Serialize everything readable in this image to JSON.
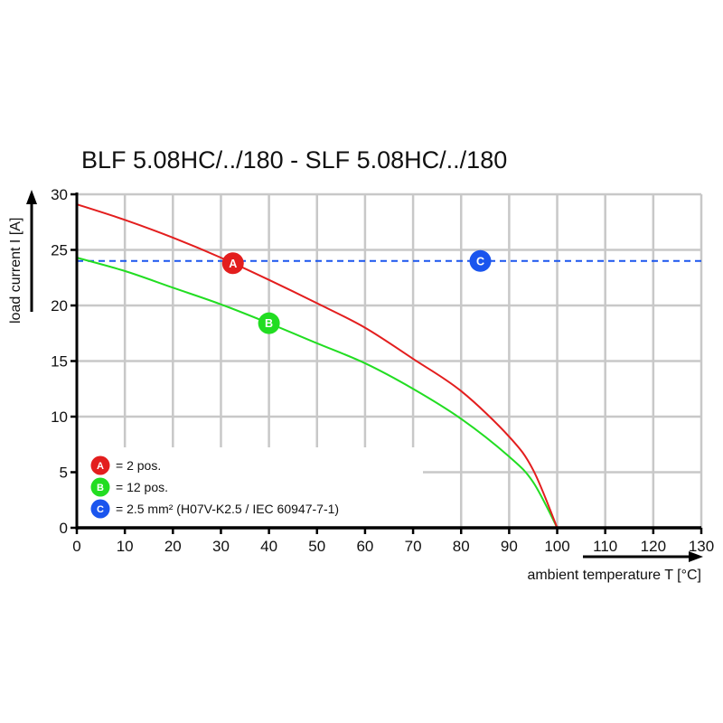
{
  "chart_data": {
    "type": "line",
    "title": "BLF 5.08HC/../180 - SLF 5.08HC/../180",
    "xlabel": "ambient temperature T [°C]",
    "ylabel": "load current I [A]",
    "xlim": [
      0,
      130
    ],
    "ylim": [
      0,
      30
    ],
    "xticks": [
      0,
      10,
      20,
      30,
      40,
      50,
      60,
      70,
      80,
      90,
      100,
      110,
      120,
      130
    ],
    "yticks": [
      0,
      5,
      10,
      15,
      20,
      25,
      30
    ],
    "grid": true,
    "legend_position": "bottom-left",
    "series": [
      {
        "marker": "A",
        "name": "= 2 pos.",
        "color": "#e31e1e",
        "x": [
          0,
          10,
          20,
          30,
          40,
          50,
          60,
          70,
          80,
          90,
          95,
          100
        ],
        "y": [
          29.1,
          27.7,
          26.1,
          24.3,
          22.3,
          20.2,
          18.0,
          15.2,
          12.3,
          8.2,
          5.2,
          0
        ],
        "marker_at": [
          32.5,
          23.8
        ]
      },
      {
        "marker": "B",
        "name": "= 12 pos.",
        "color": "#22dd22",
        "x": [
          0,
          10,
          20,
          30,
          40,
          50,
          60,
          70,
          80,
          90,
          95,
          100
        ],
        "y": [
          24.3,
          23.1,
          21.6,
          20.1,
          18.4,
          16.6,
          14.8,
          12.5,
          9.8,
          6.4,
          4.1,
          0
        ],
        "marker_at": [
          40,
          18.4
        ]
      },
      {
        "marker": "C",
        "name": "= 2.5 mm² (H07V-K2.5 / IEC 60947-7-1)",
        "color": "#1a55ee",
        "style": "dashed",
        "x": [
          0,
          130
        ],
        "y": [
          24,
          24
        ],
        "marker_at": [
          84,
          24
        ]
      }
    ]
  }
}
